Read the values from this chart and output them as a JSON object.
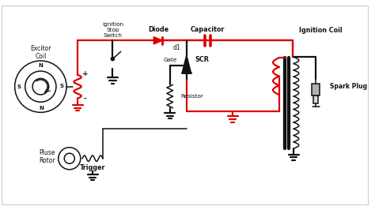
{
  "bg": "#f5f5f5",
  "white": "#ffffff",
  "red": "#dd0000",
  "blk": "#111111",
  "gray": "#888888",
  "figsize": [
    4.74,
    2.66
  ],
  "dpi": 100,
  "labels": {
    "excitor_coil": "Excitor\nCoil",
    "ignition_stop": "Ignition\nStop\nSwitch",
    "diode_top": "Diode",
    "diode_left": "Diode",
    "d1": "d1",
    "capacitor": "Capacitor",
    "scr": "SCR",
    "gate": "Gate",
    "resistor": "Resistor",
    "ignition_coil": "Ignition Coil",
    "spark_plug": "Spark Plug",
    "pluse_rotor": "Pluse\nRotor",
    "trigger": "Trigger",
    "plus": "+",
    "minus": "-",
    "N1": "N",
    "S1": "S",
    "S2": "S",
    "N2": "N"
  }
}
